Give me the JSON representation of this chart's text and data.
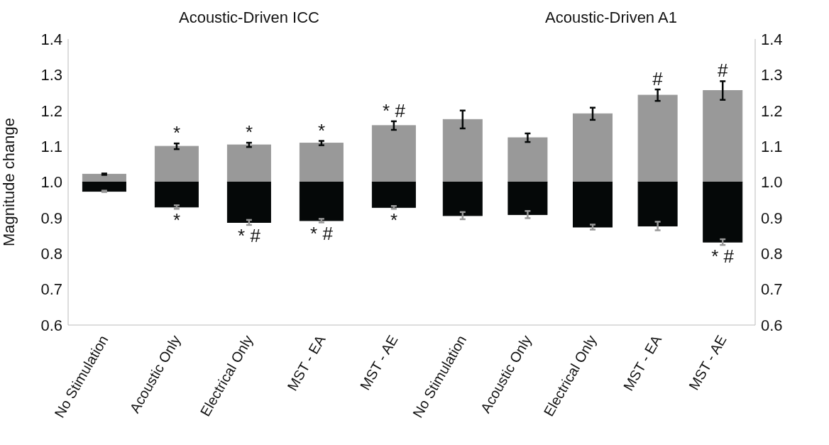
{
  "chart_data": [
    {
      "type": "bar",
      "title": "Acoustic-Driven ICC",
      "ylabel": "Magnitude change",
      "categories": [
        "No Stimulation",
        "Acoustic Only",
        "Electrical Only",
        "MST - EA",
        "MST - AE"
      ],
      "series": [
        {
          "color": "#999999",
          "base": [
            1,
            1,
            1,
            1,
            1
          ],
          "values": [
            0.022,
            0.1,
            0.104,
            0.109,
            0.158
          ],
          "errors": [
            0.002,
            0.008,
            0.006,
            0.006,
            0.012
          ]
        },
        {
          "color": "#050808",
          "base": [
            1,
            1,
            1,
            1,
            1
          ],
          "values": [
            -0.026,
            -0.07,
            -0.113,
            -0.108,
            -0.071
          ],
          "errors": [
            0.002,
            0.005,
            0.007,
            0.005,
            0.004
          ]
        }
      ],
      "ylim": [
        0.6,
        1.4
      ],
      "yticks": [
        0.6,
        0.7,
        0.8,
        0.9,
        {
          "value": 1,
          "label": "1.0"
        },
        1.1,
        1.2,
        1.3,
        1.4
      ],
      "annotations": [
        {
          "text": "*",
          "x": "Acoustic Only",
          "y": 1.1
        },
        {
          "text": "*",
          "x": "Acoustic Only",
          "y": 0.93
        },
        {
          "text": "*",
          "x": "Electrical Only",
          "y": 1.104
        },
        {
          "text": "* #",
          "x": "Electrical Only",
          "y": 0.887
        },
        {
          "text": "*",
          "x": "MST - EA",
          "y": 1.109
        },
        {
          "text": "* #",
          "x": "MST - EA",
          "y": 0.892
        },
        {
          "text": "* #",
          "x": "MST - AE",
          "y": 1.158
        },
        {
          "text": "*",
          "x": "MST - AE",
          "y": 0.929
        }
      ]
    },
    {
      "type": "bar",
      "title": "Acoustic-Driven A1",
      "categories": [
        "No Stimulation",
        "Acoustic Only",
        "Electrical Only",
        "MST - EA",
        "MST - AE"
      ],
      "series": [
        {
          "color": "#999999",
          "base": [
            1,
            1,
            1,
            1,
            1
          ],
          "values": [
            0.175,
            0.124,
            0.191,
            0.243,
            0.256
          ],
          "errors": [
            0.025,
            0.012,
            0.017,
            0.016,
            0.026
          ]
        },
        {
          "color": "#050808",
          "base": [
            1,
            1,
            1,
            1,
            1
          ],
          "values": [
            -0.094,
            -0.091,
            -0.126,
            -0.123,
            -0.168
          ],
          "errors": [
            0.01,
            0.01,
            0.007,
            0.012,
            0.008
          ]
        }
      ],
      "ylim": [
        0.6,
        1.4
      ],
      "yticks": [
        0.6,
        0.7,
        0.8,
        0.9,
        {
          "value": 1,
          "label": "1.0"
        },
        1.1,
        1.2,
        1.3,
        1.4
      ],
      "annotations": [
        {
          "text": "#",
          "x": "MST - EA",
          "y": 1.243
        },
        {
          "text": "#",
          "x": "MST - AE",
          "y": 1.256
        },
        {
          "text": "* #",
          "x": "MST - AE",
          "y": 0.832
        }
      ]
    }
  ]
}
